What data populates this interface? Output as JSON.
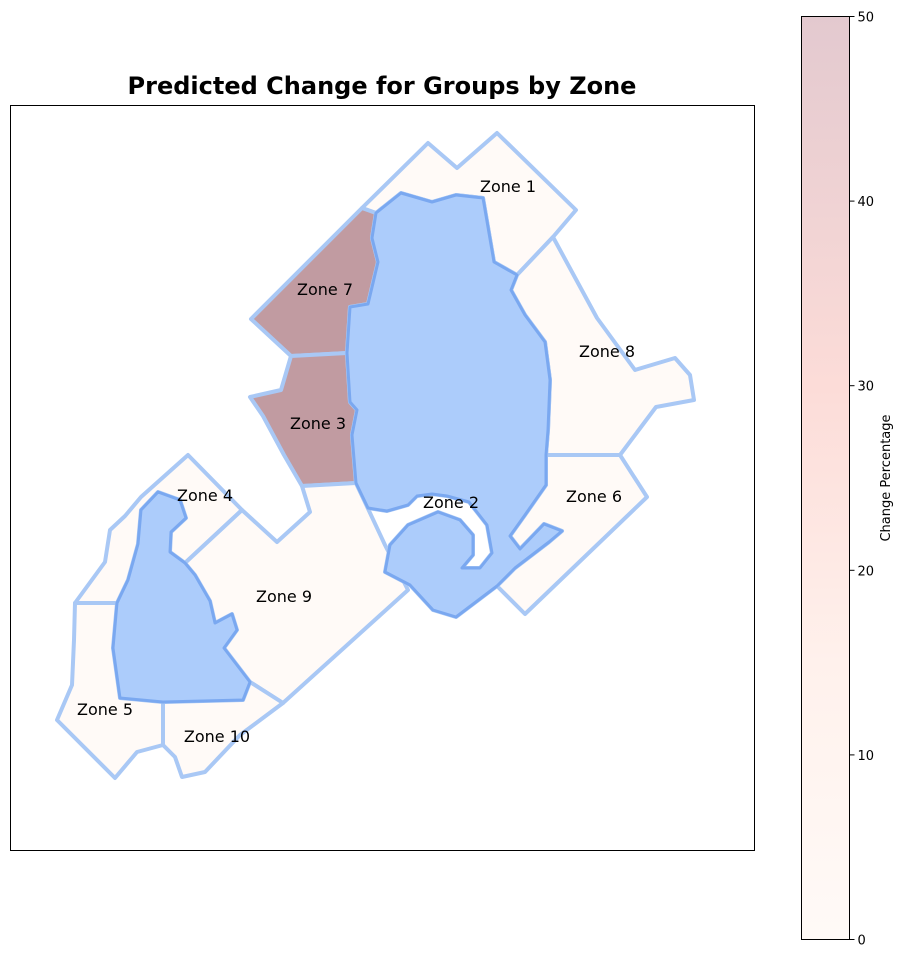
{
  "title": "Predicted Change for Groups by Zone",
  "colorbar": {
    "label": "Change Percentage",
    "min": 0,
    "max": 50,
    "ticks": [
      "0",
      "10",
      "20",
      "30",
      "40",
      "50"
    ],
    "color_low": "#fffaf7",
    "color_high": "#e3c9cf"
  },
  "colors": {
    "zone_fill_low": "#fffaf7",
    "zone_fill_high": "#c19ba1",
    "zone_edge": "#a9c8f5",
    "group_fill": "#acccfb",
    "group_edge": "#7aa8f0"
  },
  "zones": [
    {
      "id": 1,
      "label": "Zone 1",
      "change": 0
    },
    {
      "id": 2,
      "label": "Zone 2",
      "change": 0
    },
    {
      "id": 3,
      "label": "Zone 3",
      "change": 50
    },
    {
      "id": 4,
      "label": "Zone 4",
      "change": 0
    },
    {
      "id": 5,
      "label": "Zone 5",
      "change": 0
    },
    {
      "id": 6,
      "label": "Zone 6",
      "change": 0
    },
    {
      "id": 7,
      "label": "Zone 7",
      "change": 50
    },
    {
      "id": 8,
      "label": "Zone 8",
      "change": 0
    },
    {
      "id": 9,
      "label": "Zone 9",
      "change": 0
    },
    {
      "id": 10,
      "label": "Zone 10",
      "change": 0
    }
  ]
}
